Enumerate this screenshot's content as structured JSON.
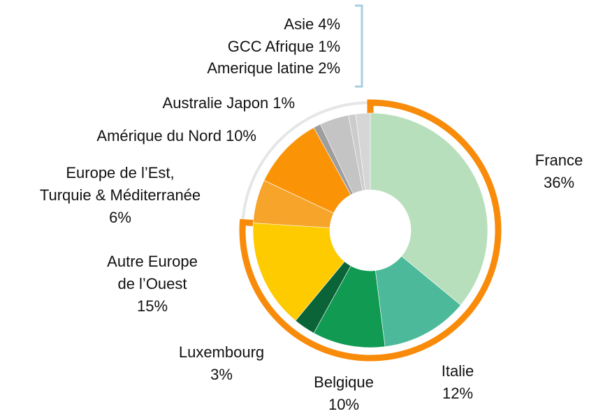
{
  "chart_data": {
    "type": "donut",
    "categories": [
      "France",
      "Italie",
      "Belgique",
      "Luxembourg",
      "Autre Europe\nde l’Ouest",
      "Europe de l’Est,\nTurquie & Méditerranée",
      "Amérique du Nord",
      "Australie Japon",
      "Asie",
      "GCC Afrique",
      "Amerique latine"
    ],
    "values": [
      36,
      12,
      10,
      3,
      15,
      6,
      10,
      1,
      4,
      1,
      2
    ],
    "value_labels": [
      "36%",
      "12%",
      "10%",
      "3%",
      "15%",
      "6%",
      "10%",
      "1%",
      "4%",
      "1%",
      "2%"
    ],
    "colors": [
      "#b8dfbc",
      "#4bb99a",
      "#119a52",
      "#0b6437",
      "#fecb00",
      "#f6a42a",
      "#fb9307",
      "#9e9e9e",
      "#c4c4c4",
      "#cccccc",
      "#d6d6d6"
    ]
  }
}
